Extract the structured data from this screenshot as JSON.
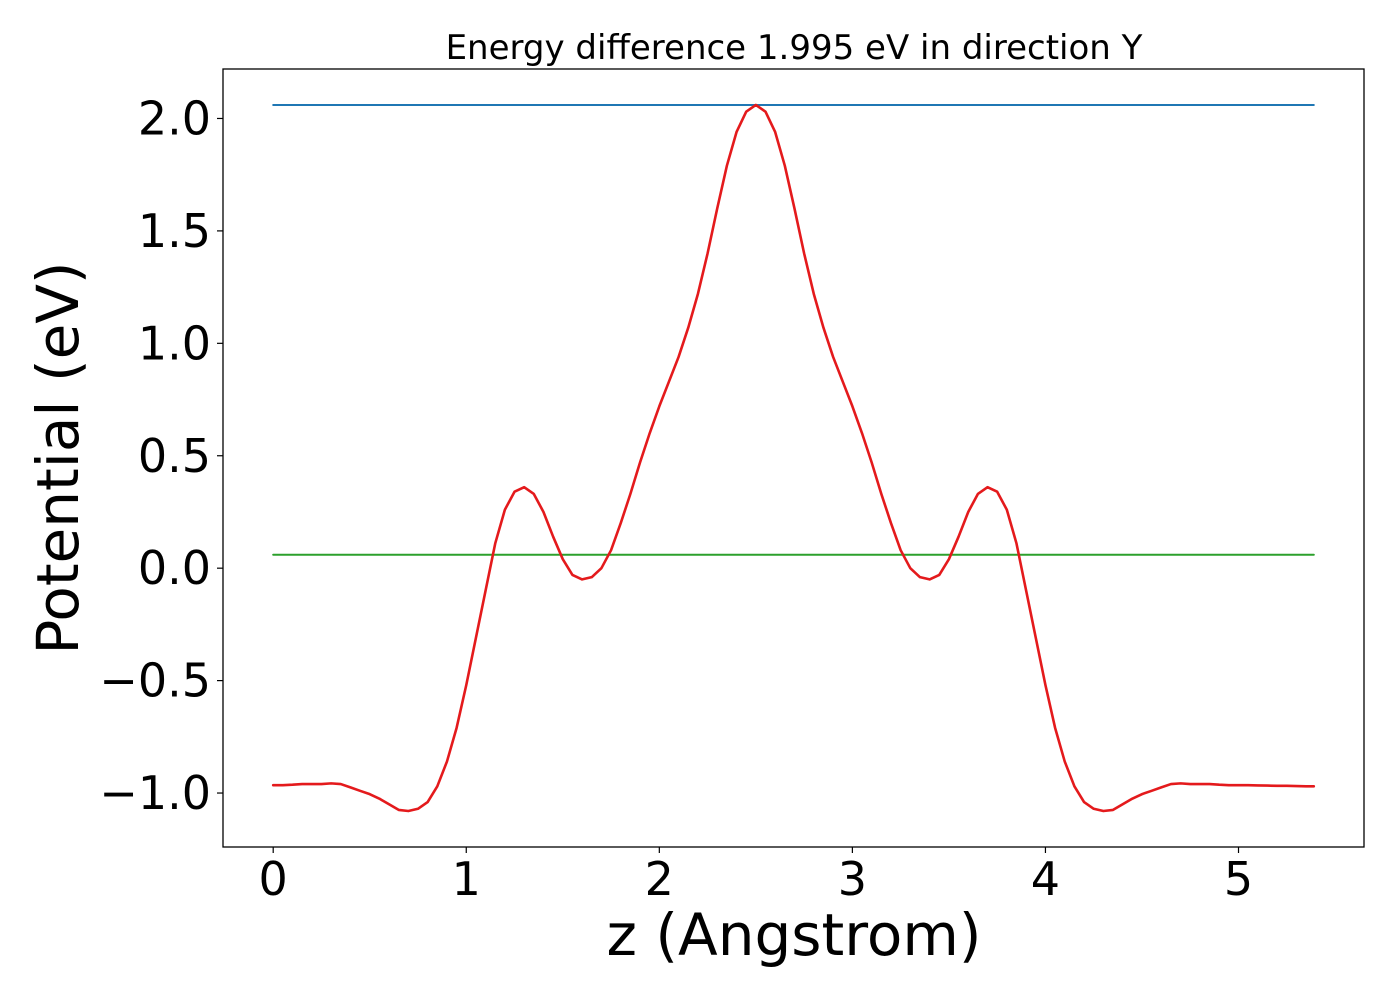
{
  "chart_data": {
    "type": "line",
    "title": "Energy difference 1.995 eV in direction Y",
    "xlabel": "z (Angstrom)",
    "ylabel": "Potential (eV)",
    "xlim": [
      -0.26,
      5.65
    ],
    "ylim": [
      -1.24,
      2.22
    ],
    "xticks": [
      0,
      1,
      2,
      3,
      4,
      5
    ],
    "xtick_labels": [
      "0",
      "1",
      "2",
      "3",
      "4",
      "5"
    ],
    "yticks": [
      -1.0,
      -0.5,
      0.0,
      0.5,
      1.0,
      1.5,
      2.0
    ],
    "ytick_labels": [
      "−1.0",
      "−0.5",
      "0.0",
      "0.5",
      "1.0",
      "1.5",
      "2.0"
    ],
    "grid": false,
    "series": [
      {
        "color": "#1f77b4",
        "x": [
          0,
          5.39
        ],
        "y": [
          2.06,
          2.06
        ]
      },
      {
        "color": "#2ca02c",
        "x": [
          0,
          5.39
        ],
        "y": [
          0.06,
          0.06
        ]
      },
      {
        "color": "#e41a1c",
        "x": [
          0.0,
          0.05,
          0.1,
          0.15,
          0.2,
          0.25,
          0.3,
          0.35,
          0.4,
          0.45,
          0.5,
          0.55,
          0.6,
          0.65,
          0.7,
          0.75,
          0.8,
          0.85,
          0.9,
          0.95,
          1.0,
          1.05,
          1.1,
          1.15,
          1.2,
          1.25,
          1.3,
          1.35,
          1.4,
          1.45,
          1.5,
          1.55,
          1.6,
          1.65,
          1.7,
          1.75,
          1.8,
          1.85,
          1.9,
          1.95,
          2.0,
          2.05,
          2.1,
          2.15,
          2.2,
          2.25,
          2.3,
          2.35,
          2.4,
          2.45,
          2.5,
          2.55,
          2.6,
          2.65,
          2.7,
          2.75,
          2.8,
          2.85,
          2.9,
          2.95,
          3.0,
          3.05,
          3.1,
          3.15,
          3.2,
          3.25,
          3.3,
          3.35,
          3.4,
          3.45,
          3.5,
          3.55,
          3.6,
          3.65,
          3.7,
          3.75,
          3.8,
          3.85,
          3.9,
          3.95,
          4.0,
          4.05,
          4.1,
          4.15,
          4.2,
          4.25,
          4.3,
          4.35,
          4.4,
          4.45,
          4.5,
          4.55,
          4.6,
          4.65,
          4.7,
          4.75,
          4.8,
          4.85,
          4.9,
          4.95,
          5.0,
          5.05,
          5.1,
          5.15,
          5.2,
          5.25,
          5.3,
          5.35,
          5.39
        ],
        "y": [
          -0.965,
          -0.965,
          -0.963,
          -0.96,
          -0.96,
          -0.96,
          -0.957,
          -0.96,
          -0.975,
          -0.99,
          -1.005,
          -1.025,
          -1.05,
          -1.075,
          -1.08,
          -1.07,
          -1.04,
          -0.97,
          -0.86,
          -0.71,
          -0.52,
          -0.31,
          -0.1,
          0.11,
          0.26,
          0.34,
          0.36,
          0.33,
          0.25,
          0.14,
          0.04,
          -0.03,
          -0.05,
          -0.04,
          0.0,
          0.08,
          0.2,
          0.33,
          0.47,
          0.6,
          0.72,
          0.83,
          0.94,
          1.07,
          1.22,
          1.4,
          1.6,
          1.79,
          1.94,
          2.03,
          2.06,
          2.03,
          1.94,
          1.79,
          1.6,
          1.4,
          1.22,
          1.07,
          0.94,
          0.83,
          0.72,
          0.6,
          0.47,
          0.33,
          0.2,
          0.08,
          0.0,
          -0.04,
          -0.05,
          -0.03,
          0.04,
          0.14,
          0.25,
          0.33,
          0.36,
          0.34,
          0.26,
          0.11,
          -0.1,
          -0.31,
          -0.52,
          -0.71,
          -0.86,
          -0.97,
          -1.04,
          -1.07,
          -1.08,
          -1.075,
          -1.05,
          -1.025,
          -1.005,
          -0.99,
          -0.975,
          -0.96,
          -0.957,
          -0.96,
          -0.96,
          -0.96,
          -0.963,
          -0.965,
          -0.965,
          -0.965,
          -0.966,
          -0.967,
          -0.968,
          -0.968,
          -0.969,
          -0.97,
          -0.97
        ]
      }
    ]
  }
}
